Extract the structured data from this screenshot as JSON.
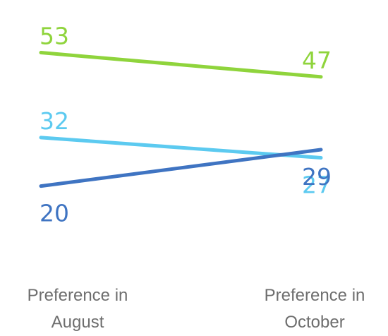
{
  "chart_data": {
    "type": "line",
    "categories": [
      "Preference in August",
      "Preference in October"
    ],
    "category_lines": [
      [
        "Preference in",
        "August"
      ],
      [
        "Preference in",
        "October"
      ]
    ],
    "series": [
      {
        "values": [
          53,
          47
        ],
        "color": "#8fd43c"
      },
      {
        "values": [
          32,
          27
        ],
        "color": "#5ccaf0"
      },
      {
        "values": [
          20,
          29
        ],
        "color": "#3f74c2"
      }
    ],
    "title": "",
    "xlabel": "",
    "ylabel": "",
    "grid": false,
    "legend": "none"
  }
}
